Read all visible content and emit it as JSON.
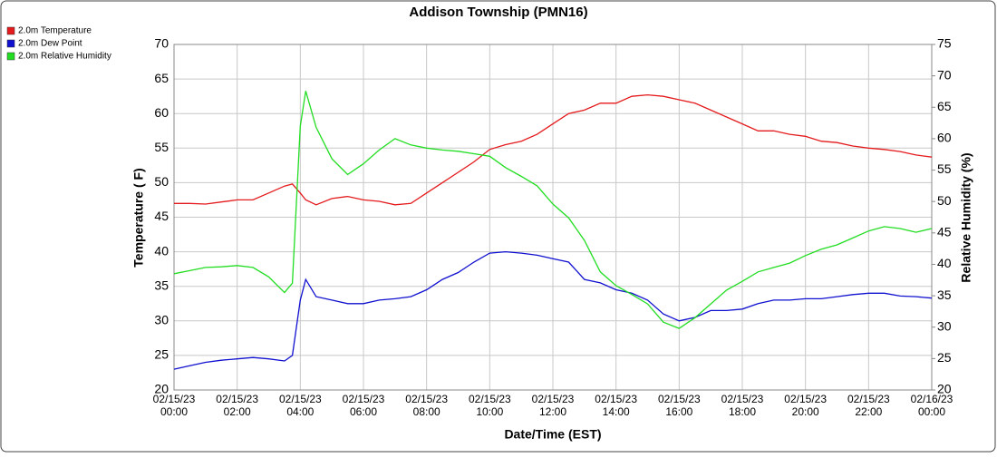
{
  "chart_data": {
    "type": "line",
    "title": "Addison Township (PMN16)",
    "xlabel": "Date/Time (EST)",
    "ylabel": "Temperature ( F)",
    "y2label": "Relative Humidity (%)",
    "x": [
      0,
      0.5,
      1,
      1.5,
      2,
      2.5,
      3,
      3.5,
      3.75,
      4,
      4.17,
      4.5,
      5,
      5.5,
      6,
      6.5,
      7,
      7.5,
      8,
      8.5,
      9,
      9.5,
      10,
      10.5,
      11,
      11.5,
      12,
      12.5,
      13,
      13.5,
      14,
      14.5,
      15,
      15.5,
      16,
      16.5,
      17,
      17.5,
      18,
      18.5,
      19,
      19.5,
      20,
      20.5,
      21,
      21.5,
      22,
      22.5,
      23,
      23.5,
      24
    ],
    "series": [
      {
        "name": "2.0m Temperature",
        "color": "#e41a1c",
        "values": [
          47,
          47,
          46.9,
          47.2,
          47.5,
          47.5,
          48.5,
          49.5,
          49.8,
          48.5,
          47.5,
          46.8,
          47.7,
          48,
          47.5,
          47.3,
          46.8,
          47,
          48.5,
          50,
          51.5,
          53,
          54.8,
          55.5,
          56,
          57,
          58.5,
          60,
          60.5,
          61.5,
          61.5,
          62.5,
          62.7,
          62.5,
          62,
          61.5,
          60.5,
          59.5,
          58.5,
          57.5,
          57.5,
          57,
          56.7,
          56,
          55.8,
          55.3,
          55,
          54.8,
          54.5,
          54,
          53.7
        ]
      },
      {
        "name": "2.0m Dew Point",
        "color": "#1010d0",
        "values": [
          23,
          23.5,
          24,
          24.3,
          24.5,
          24.7,
          24.5,
          24.2,
          25,
          33,
          36,
          33.5,
          33,
          32.5,
          32.5,
          33,
          33.2,
          33.5,
          34.5,
          36,
          37,
          38.5,
          39.8,
          40,
          39.8,
          39.5,
          39,
          38.5,
          36,
          35.5,
          34.5,
          34,
          33,
          31,
          30,
          30.5,
          31.5,
          31.5,
          31.7,
          32.5,
          33,
          33,
          33.2,
          33.2,
          33.5,
          33.8,
          34,
          34,
          33.6,
          33.5,
          33.3
        ]
      },
      {
        "name": "2.0m Relative Humidity",
        "color": "#22dd22",
        "axis": "y2",
        "values": [
          38.5,
          39,
          39.5,
          39.6,
          39.8,
          39.5,
          38,
          35.5,
          37,
          62,
          67.6,
          61.8,
          56.8,
          54.3,
          56,
          58.2,
          60,
          59,
          58.5,
          58.2,
          58,
          57.6,
          57.2,
          55.4,
          54,
          52.5,
          49.6,
          47.4,
          43.8,
          38.8,
          36.6,
          35.2,
          33.7,
          30.8,
          29.8,
          31.5,
          33.7,
          35.9,
          37.3,
          38.8,
          39.5,
          40.2,
          41.4,
          42.4,
          43.1,
          44.2,
          45.3,
          46,
          45.7,
          45.1,
          45.7
        ]
      }
    ],
    "xlim": [
      0,
      24
    ],
    "xticks": [
      {
        "value": 0,
        "label": "02/15/23 00:00"
      },
      {
        "value": 2,
        "label": "02/15/23 02:00"
      },
      {
        "value": 4,
        "label": "02/15/23 04:00"
      },
      {
        "value": 6,
        "label": "02/15/23 06:00"
      },
      {
        "value": 8,
        "label": "02/15/23 08:00"
      },
      {
        "value": 10,
        "label": "02/15/23 10:00"
      },
      {
        "value": 12,
        "label": "02/15/23 12:00"
      },
      {
        "value": 14,
        "label": "02/15/23 14:00"
      },
      {
        "value": 16,
        "label": "02/15/23 16:00"
      },
      {
        "value": 18,
        "label": "02/15/23 18:00"
      },
      {
        "value": 20,
        "label": "02/15/23 20:00"
      },
      {
        "value": 22,
        "label": "02/15/23 22:00"
      },
      {
        "value": 24,
        "label": "02/16/23 00:00"
      }
    ],
    "ylim": [
      20,
      70
    ],
    "yticks": [
      20,
      25,
      30,
      35,
      40,
      45,
      50,
      55,
      60,
      65,
      70
    ],
    "y2lim": [
      20,
      75
    ],
    "y2ticks": [
      20,
      25,
      30,
      35,
      40,
      45,
      50,
      55,
      60,
      65,
      70,
      75
    ],
    "grid": true,
    "legend": "top-left"
  }
}
